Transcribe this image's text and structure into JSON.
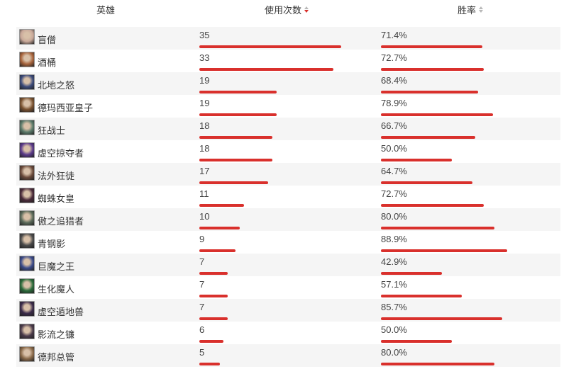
{
  "header": {
    "hero_label": "英雄",
    "uses_label": "使用次数",
    "winrate_label": "胜率"
  },
  "rows": [
    {
      "name": "盲僧",
      "uses": "35",
      "winrate": "71.4%",
      "uses_value": 35,
      "winrate_value": 71.4,
      "avatar_color": "#c9a99a"
    },
    {
      "name": "酒桶",
      "uses": "33",
      "winrate": "72.7%",
      "uses_value": 33,
      "winrate_value": 72.7,
      "avatar_color": "#a8643c"
    },
    {
      "name": "北地之怒",
      "uses": "19",
      "winrate": "68.4%",
      "uses_value": 19,
      "winrate_value": 68.4,
      "avatar_color": "#3b4a7a"
    },
    {
      "name": "德玛西亚皇子",
      "uses": "19",
      "winrate": "78.9%",
      "uses_value": 19,
      "winrate_value": 78.9,
      "avatar_color": "#7a5230"
    },
    {
      "name": "狂战士",
      "uses": "18",
      "winrate": "66.7%",
      "uses_value": 18,
      "winrate_value": 66.7,
      "avatar_color": "#5a7a6a"
    },
    {
      "name": "虚空掠夺者",
      "uses": "18",
      "winrate": "50.0%",
      "uses_value": 18,
      "winrate_value": 50.0,
      "avatar_color": "#5a3a8a"
    },
    {
      "name": "法外狂徒",
      "uses": "17",
      "winrate": "64.7%",
      "uses_value": 17,
      "winrate_value": 64.7,
      "avatar_color": "#6a4a3a"
    },
    {
      "name": "蜘蛛女皇",
      "uses": "11",
      "winrate": "72.7%",
      "uses_value": 11,
      "winrate_value": 72.7,
      "avatar_color": "#4a2a3a"
    },
    {
      "name": "傲之追猎者",
      "uses": "10",
      "winrate": "80.0%",
      "uses_value": 10,
      "winrate_value": 80.0,
      "avatar_color": "#5a6a5a"
    },
    {
      "name": "青钢影",
      "uses": "9",
      "winrate": "88.9%",
      "uses_value": 9,
      "winrate_value": 88.9,
      "avatar_color": "#4a4a4a"
    },
    {
      "name": "巨魔之王",
      "uses": "7",
      "winrate": "42.9%",
      "uses_value": 7,
      "winrate_value": 42.9,
      "avatar_color": "#3a4a8a"
    },
    {
      "name": "生化魔人",
      "uses": "7",
      "winrate": "57.1%",
      "uses_value": 7,
      "winrate_value": 57.1,
      "avatar_color": "#2a6a3a"
    },
    {
      "name": "虚空遁地兽",
      "uses": "7",
      "winrate": "85.7%",
      "uses_value": 7,
      "winrate_value": 85.7,
      "avatar_color": "#3a2a4a"
    },
    {
      "name": "影流之镰",
      "uses": "6",
      "winrate": "50.0%",
      "uses_value": 6,
      "winrate_value": 50.0,
      "avatar_color": "#4a3a4a"
    },
    {
      "name": "德邦总管",
      "uses": "5",
      "winrate": "80.0%",
      "uses_value": 5,
      "winrate_value": 80.0,
      "avatar_color": "#8a6a4a"
    }
  ],
  "colors": {
    "bar": "#d9302c",
    "stripe": "#f5f5f5",
    "sort_active": "#d9302c",
    "sort_inactive": "#b8b8b8"
  }
}
